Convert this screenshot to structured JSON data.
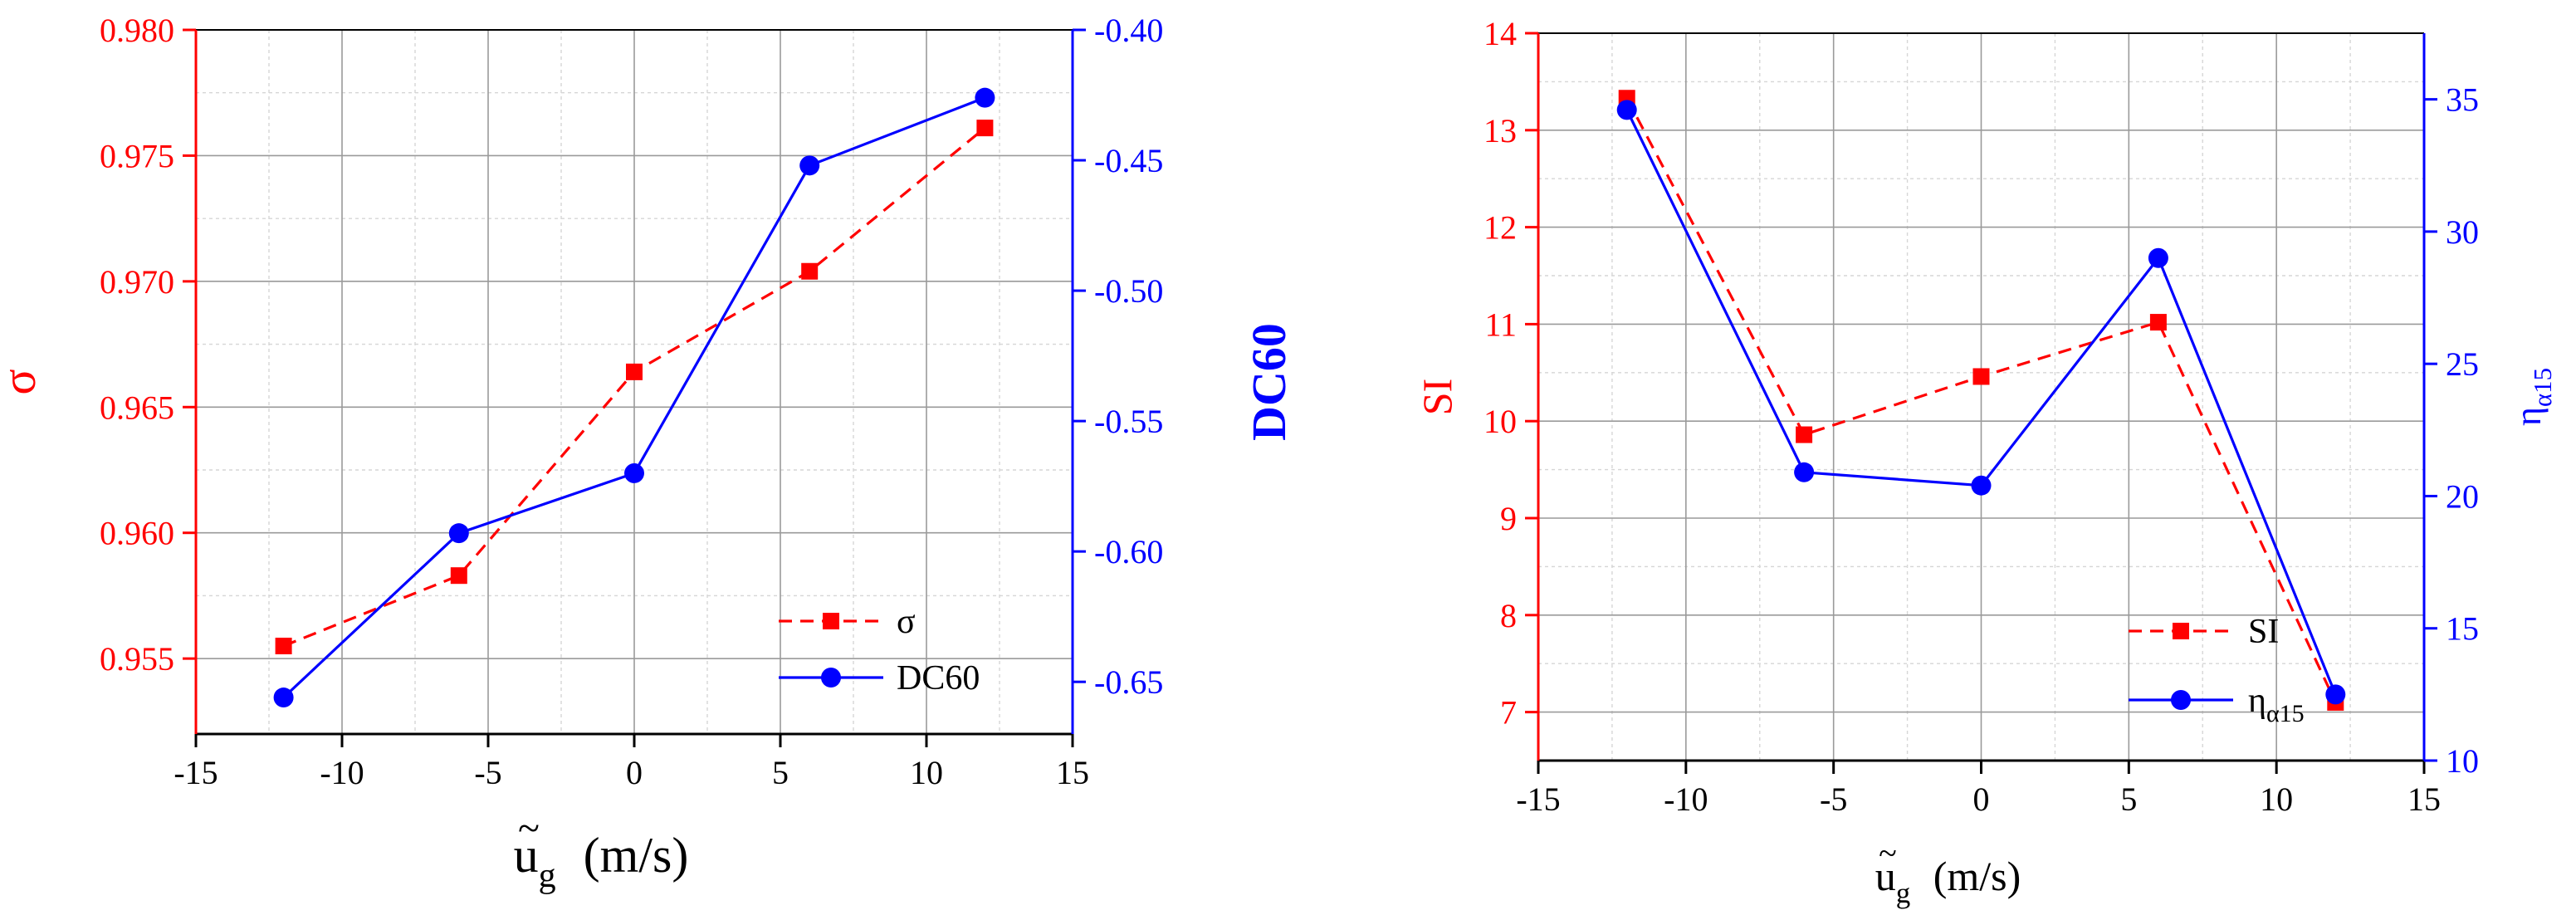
{
  "colors": {
    "red": "#ff0000",
    "blue": "#0000ff",
    "black": "#000000"
  },
  "chart_data": [
    {
      "type": "line",
      "title": "",
      "x": [
        -12,
        -6,
        0,
        6,
        12
      ],
      "xlabel": "ũg (m/s)",
      "xlabel_main": "u",
      "xlabel_tilde": "~",
      "xlabel_sub": "g",
      "xlabel_units": "(m/s)",
      "xlim": [
        -15,
        15
      ],
      "xticks": [
        -15,
        -10,
        -5,
        0,
        5,
        10,
        15
      ],
      "xtick_labels": [
        "-15",
        "-10",
        "-5",
        "0",
        "5",
        "10",
        "15"
      ],
      "grid": true,
      "legend_position": "bottom-right",
      "y_left": {
        "label": "σ",
        "lim": [
          0.952,
          0.98
        ],
        "ticks": [
          0.955,
          0.96,
          0.965,
          0.97,
          0.975,
          0.98
        ],
        "tick_labels": [
          "0.955",
          "0.960",
          "0.965",
          "0.970",
          "0.975",
          "0.980"
        ]
      },
      "y_right": {
        "label": "DC60",
        "lim": [
          -0.67,
          -0.4
        ],
        "ticks": [
          -0.65,
          -0.6,
          -0.55,
          -0.5,
          -0.45,
          -0.4
        ],
        "tick_labels": [
          "-0.65",
          "-0.60",
          "-0.55",
          "-0.50",
          "-0.45",
          "-0.40"
        ]
      },
      "series": [
        {
          "name": "σ",
          "axis": "left",
          "style": "dashed",
          "marker": "square",
          "color": "#ff0000",
          "values": [
            0.9555,
            0.9583,
            0.9664,
            0.9704,
            0.9761
          ]
        },
        {
          "name": "DC60",
          "axis": "right",
          "style": "solid",
          "marker": "circle",
          "color": "#0000ff",
          "values": [
            -0.656,
            -0.593,
            -0.57,
            -0.452,
            -0.426
          ]
        }
      ]
    },
    {
      "type": "line",
      "title": "",
      "x": [
        -12,
        -6,
        0,
        6,
        12
      ],
      "xlabel": "ũg (m/s)",
      "xlabel_main": "u",
      "xlabel_tilde": "~",
      "xlabel_sub": "g",
      "xlabel_units": "(m/s)",
      "xlim": [
        -15,
        15
      ],
      "xticks": [
        -15,
        -10,
        -5,
        0,
        5,
        10,
        15
      ],
      "xtick_labels": [
        "-15",
        "-10",
        "-5",
        "0",
        "5",
        "10",
        "15"
      ],
      "grid": true,
      "legend_position": "bottom-right",
      "y_left": {
        "label": "SI",
        "lim": [
          6.5,
          14
        ],
        "ticks": [
          7,
          8,
          9,
          10,
          11,
          12,
          13,
          14
        ],
        "tick_labels": [
          "7",
          "8",
          "9",
          "10",
          "11",
          "12",
          "13",
          "14"
        ]
      },
      "y_right": {
        "label": "ηα15",
        "label_main": "η",
        "label_sub": "α15",
        "lim": [
          10,
          37.5
        ],
        "ticks": [
          10,
          15,
          20,
          25,
          30,
          35
        ],
        "tick_labels": [
          "10",
          "15",
          "20",
          "25",
          "30",
          "35"
        ]
      },
      "series": [
        {
          "name": "SI",
          "axis": "left",
          "style": "dashed",
          "marker": "square",
          "color": "#ff0000",
          "values": [
            13.33,
            9.86,
            10.46,
            11.02,
            7.1
          ]
        },
        {
          "name": "ηα15",
          "name_main": "η",
          "name_sub": "α15",
          "axis": "right",
          "style": "solid",
          "marker": "circle",
          "color": "#0000ff",
          "values": [
            34.6,
            20.9,
            20.4,
            29.0,
            12.5
          ]
        }
      ]
    }
  ]
}
